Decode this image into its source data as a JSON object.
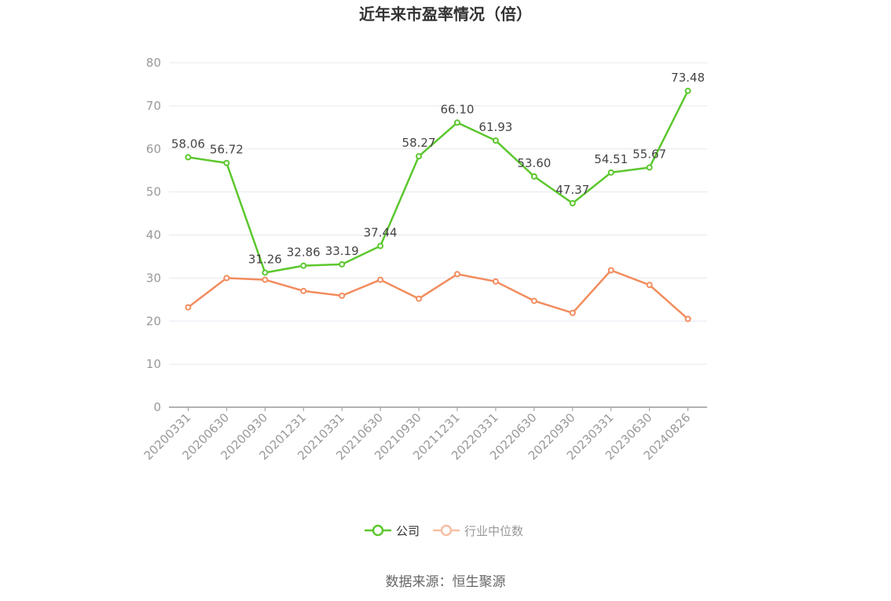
{
  "chart_data": {
    "type": "line",
    "title": "近年来市盈率情况（倍）",
    "x": [
      "20200331",
      "20200630",
      "20200930",
      "20201231",
      "20210331",
      "20210630",
      "20210930",
      "20211231",
      "20220331",
      "20220630",
      "20220930",
      "20230331",
      "20230630",
      "20240826"
    ],
    "ylim": [
      0,
      80
    ],
    "yticks": [
      0,
      10,
      20,
      30,
      40,
      50,
      60,
      70,
      80
    ],
    "grid": true,
    "legend_position": "bottom-center",
    "series": [
      {
        "name": "公司",
        "color": "#5cc72e",
        "values": [
          58.06,
          56.72,
          31.26,
          32.86,
          33.19,
          37.44,
          58.27,
          66.1,
          61.93,
          53.6,
          47.37,
          54.51,
          55.67,
          73.48
        ],
        "labels": [
          "58.06",
          "56.72",
          "31.26",
          "32.86",
          "33.19",
          "37.44",
          "58.27",
          "66.10",
          "61.93",
          "53.60",
          "47.37",
          "54.51",
          "55.67",
          "73.48"
        ]
      },
      {
        "name": "行业中位数",
        "color": "#f28c5e",
        "legend_color": "#f7bfa5",
        "values": [
          23.2,
          30.0,
          29.6,
          27.0,
          25.9,
          29.6,
          25.2,
          30.9,
          29.2,
          24.7,
          21.9,
          31.8,
          28.4,
          20.5
        ]
      }
    ],
    "source": "数据来源：恒生聚源"
  }
}
